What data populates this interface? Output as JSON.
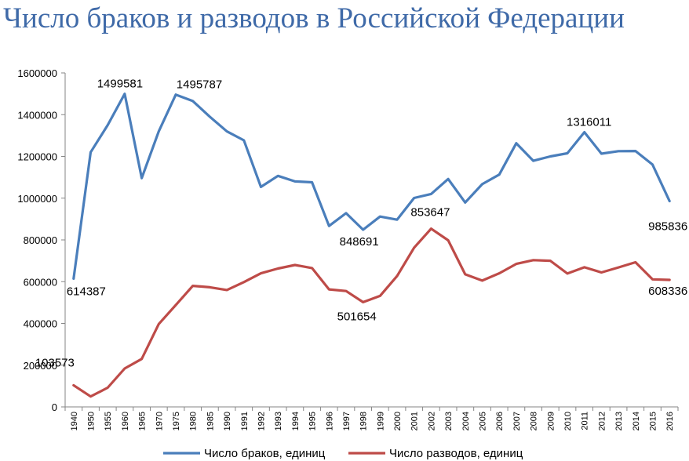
{
  "chart_data": {
    "type": "line",
    "title": "Число браков и разводов в Российской Федерации",
    "xlabel": "",
    "ylabel": "",
    "ylim": [
      0,
      1600000
    ],
    "yticks": [
      0,
      200000,
      400000,
      600000,
      800000,
      1000000,
      1200000,
      1400000,
      1600000
    ],
    "grid": false,
    "legend_position": "bottom",
    "categories": [
      "1940",
      "1950",
      "1955",
      "1960",
      "1965",
      "1970",
      "1975",
      "1980",
      "1985",
      "1990",
      "1991",
      "1992",
      "1993",
      "1994",
      "1995",
      "1996",
      "1997",
      "1998",
      "1999",
      "2000",
      "2001",
      "2002",
      "2003",
      "2004",
      "2005",
      "2006",
      "2007",
      "2008",
      "2009",
      "2010",
      "2011",
      "2012",
      "2013",
      "2014",
      "2015",
      "2016"
    ],
    "series": [
      {
        "name": "Число браков, единиц",
        "color": "#4a7ebb",
        "values": [
          614387,
          1220000,
          1350000,
          1499581,
          1096000,
          1320000,
          1495787,
          1465000,
          1390000,
          1320000,
          1277000,
          1054000,
          1107000,
          1080000,
          1076000,
          867000,
          928000,
          848691,
          912000,
          897000,
          1001000,
          1020000,
          1092000,
          979000,
          1067000,
          1113000,
          1263000,
          1179000,
          1200000,
          1215000,
          1316011,
          1213000,
          1225000,
          1226000,
          1161000,
          985836
        ]
      },
      {
        "name": "Число разводов, единиц",
        "color": "#be4b48",
        "values": [
          103573,
          50000,
          92000,
          184000,
          230000,
          397000,
          488000,
          580000,
          573000,
          560000,
          598000,
          640000,
          663000,
          680000,
          665000,
          563000,
          555000,
          501654,
          532000,
          627000,
          763000,
          853647,
          798000,
          635000,
          605000,
          640000,
          685000,
          703000,
          700000,
          639000,
          669000,
          644000,
          668000,
          693000,
          611000,
          608336
        ]
      }
    ],
    "annotations": [
      {
        "series": 0,
        "index": 0,
        "text": "614387"
      },
      {
        "series": 0,
        "index": 3,
        "text": "1499581"
      },
      {
        "series": 0,
        "index": 6,
        "text": "1495787"
      },
      {
        "series": 0,
        "index": 17,
        "text": "848691"
      },
      {
        "series": 0,
        "index": 30,
        "text": "1316011"
      },
      {
        "series": 0,
        "index": 35,
        "text": "985836"
      },
      {
        "series": 1,
        "index": 0,
        "text": "103573"
      },
      {
        "series": 1,
        "index": 17,
        "text": "501654"
      },
      {
        "series": 1,
        "index": 21,
        "text": "853647"
      },
      {
        "series": 1,
        "index": 35,
        "text": "608336"
      }
    ]
  }
}
